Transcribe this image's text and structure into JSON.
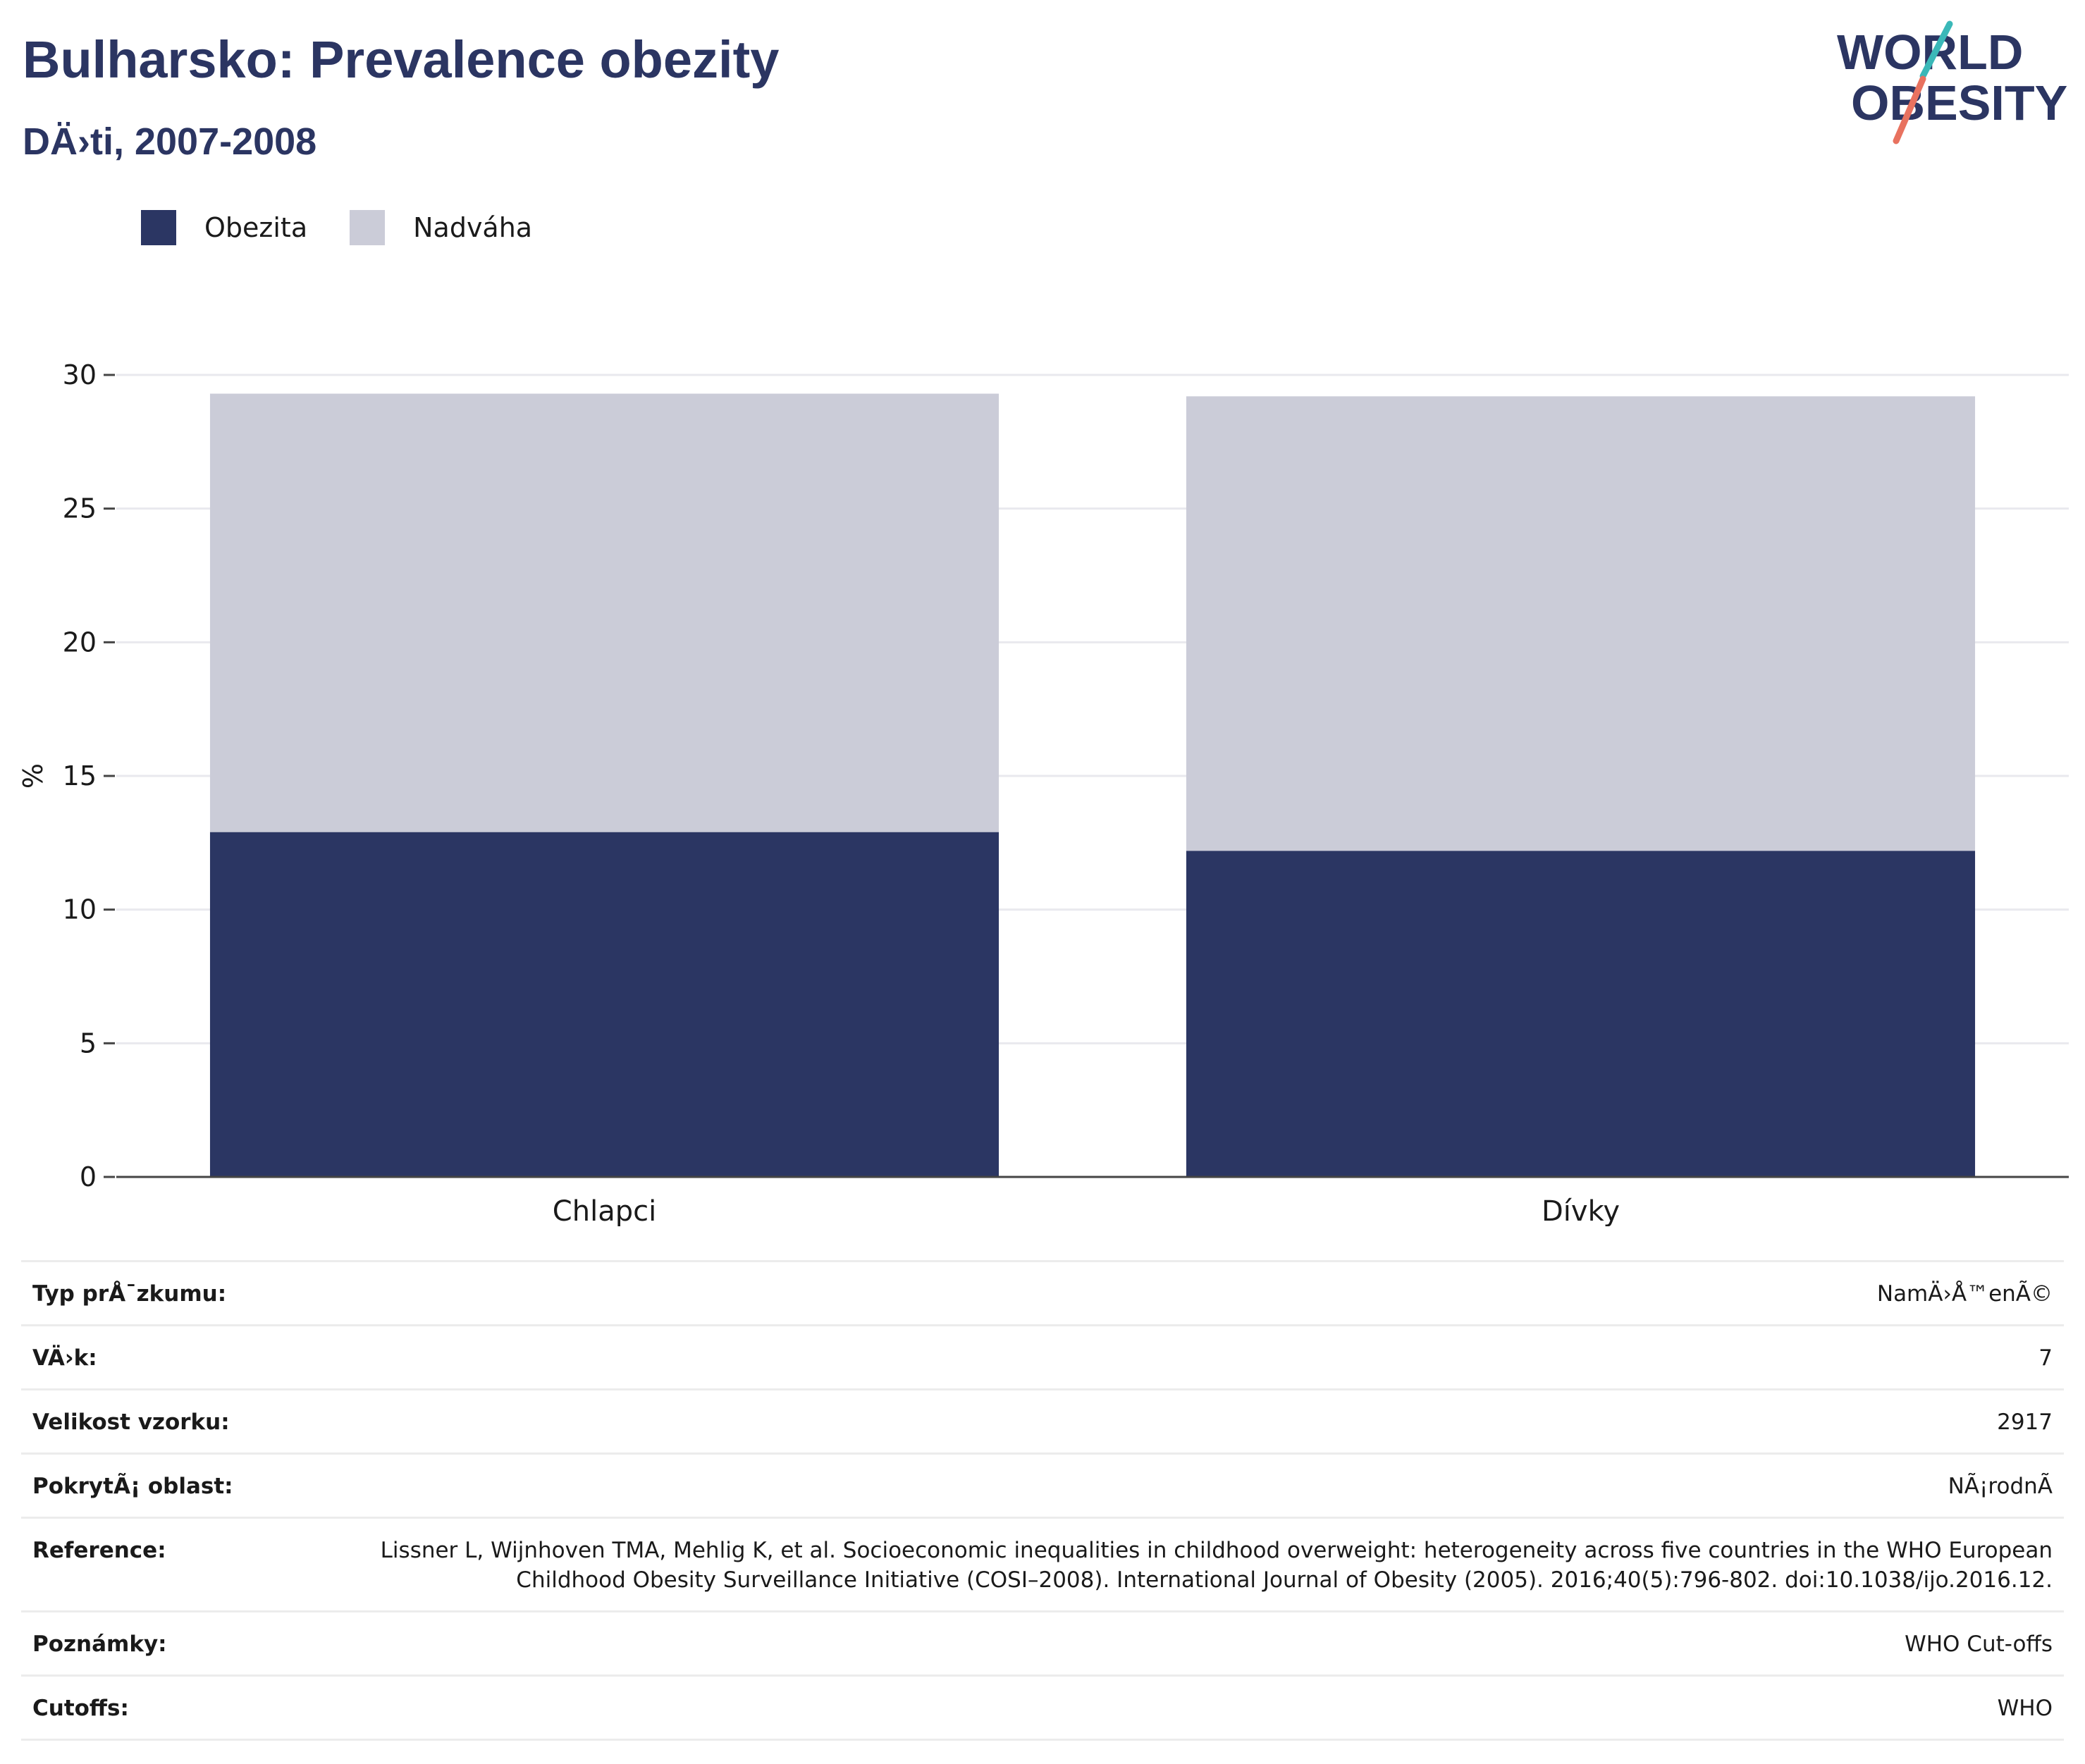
{
  "header": {
    "title": "Bulharsko: Prevalence obezity",
    "subtitle": "DÄ›ti, 2007-2008"
  },
  "logo": {
    "line1": "WORLD",
    "line2": "OBESITY",
    "icon": "world-obesity-logo"
  },
  "colors": {
    "obezita": "#2b3663",
    "nadvaha": "#cbccd8",
    "brand": "#2b3562",
    "accent_teal": "#3ab8b8",
    "accent_coral": "#e8725f"
  },
  "chart_data": {
    "type": "bar",
    "stacked": true,
    "categories": [
      "Chlapci",
      "Dívky"
    ],
    "series": [
      {
        "name": "Obezita",
        "values": [
          12.9,
          12.2
        ]
      },
      {
        "name": "Nadváha",
        "values": [
          16.4,
          17.0
        ]
      }
    ],
    "totals": [
      29.3,
      29.2
    ],
    "ylabel": "%",
    "ylim": [
      0,
      30
    ],
    "yticks": [
      0,
      5,
      10,
      15,
      20,
      25,
      30
    ],
    "grid": true,
    "legend": "top-left"
  },
  "info_table": [
    {
      "key": "Typ prÅ¯zkumu:",
      "value": "NamÄ›Å™enÃ©"
    },
    {
      "key": "VÄ›k:",
      "value": "7"
    },
    {
      "key": "Velikost vzorku:",
      "value": "2917"
    },
    {
      "key": "PokrytÃ¡ oblast:",
      "value": "NÃ¡rodnÃ"
    },
    {
      "key": "Reference:",
      "value": "Lissner L, Wijnhoven TMA, Mehlig K, et al. Socioeconomic inequalities in childhood overweight: heterogeneity across five countries in the WHO European Childhood Obesity Surveillance Initiative (COSI–2008). International Journal of Obesity (2005). 2016;40(5):796-802. doi:10.1038/ijo.2016.12."
    },
    {
      "key": "Poznámky:",
      "value": "WHO Cut-offs"
    },
    {
      "key": "Cutoffs:",
      "value": "WHO"
    }
  ]
}
